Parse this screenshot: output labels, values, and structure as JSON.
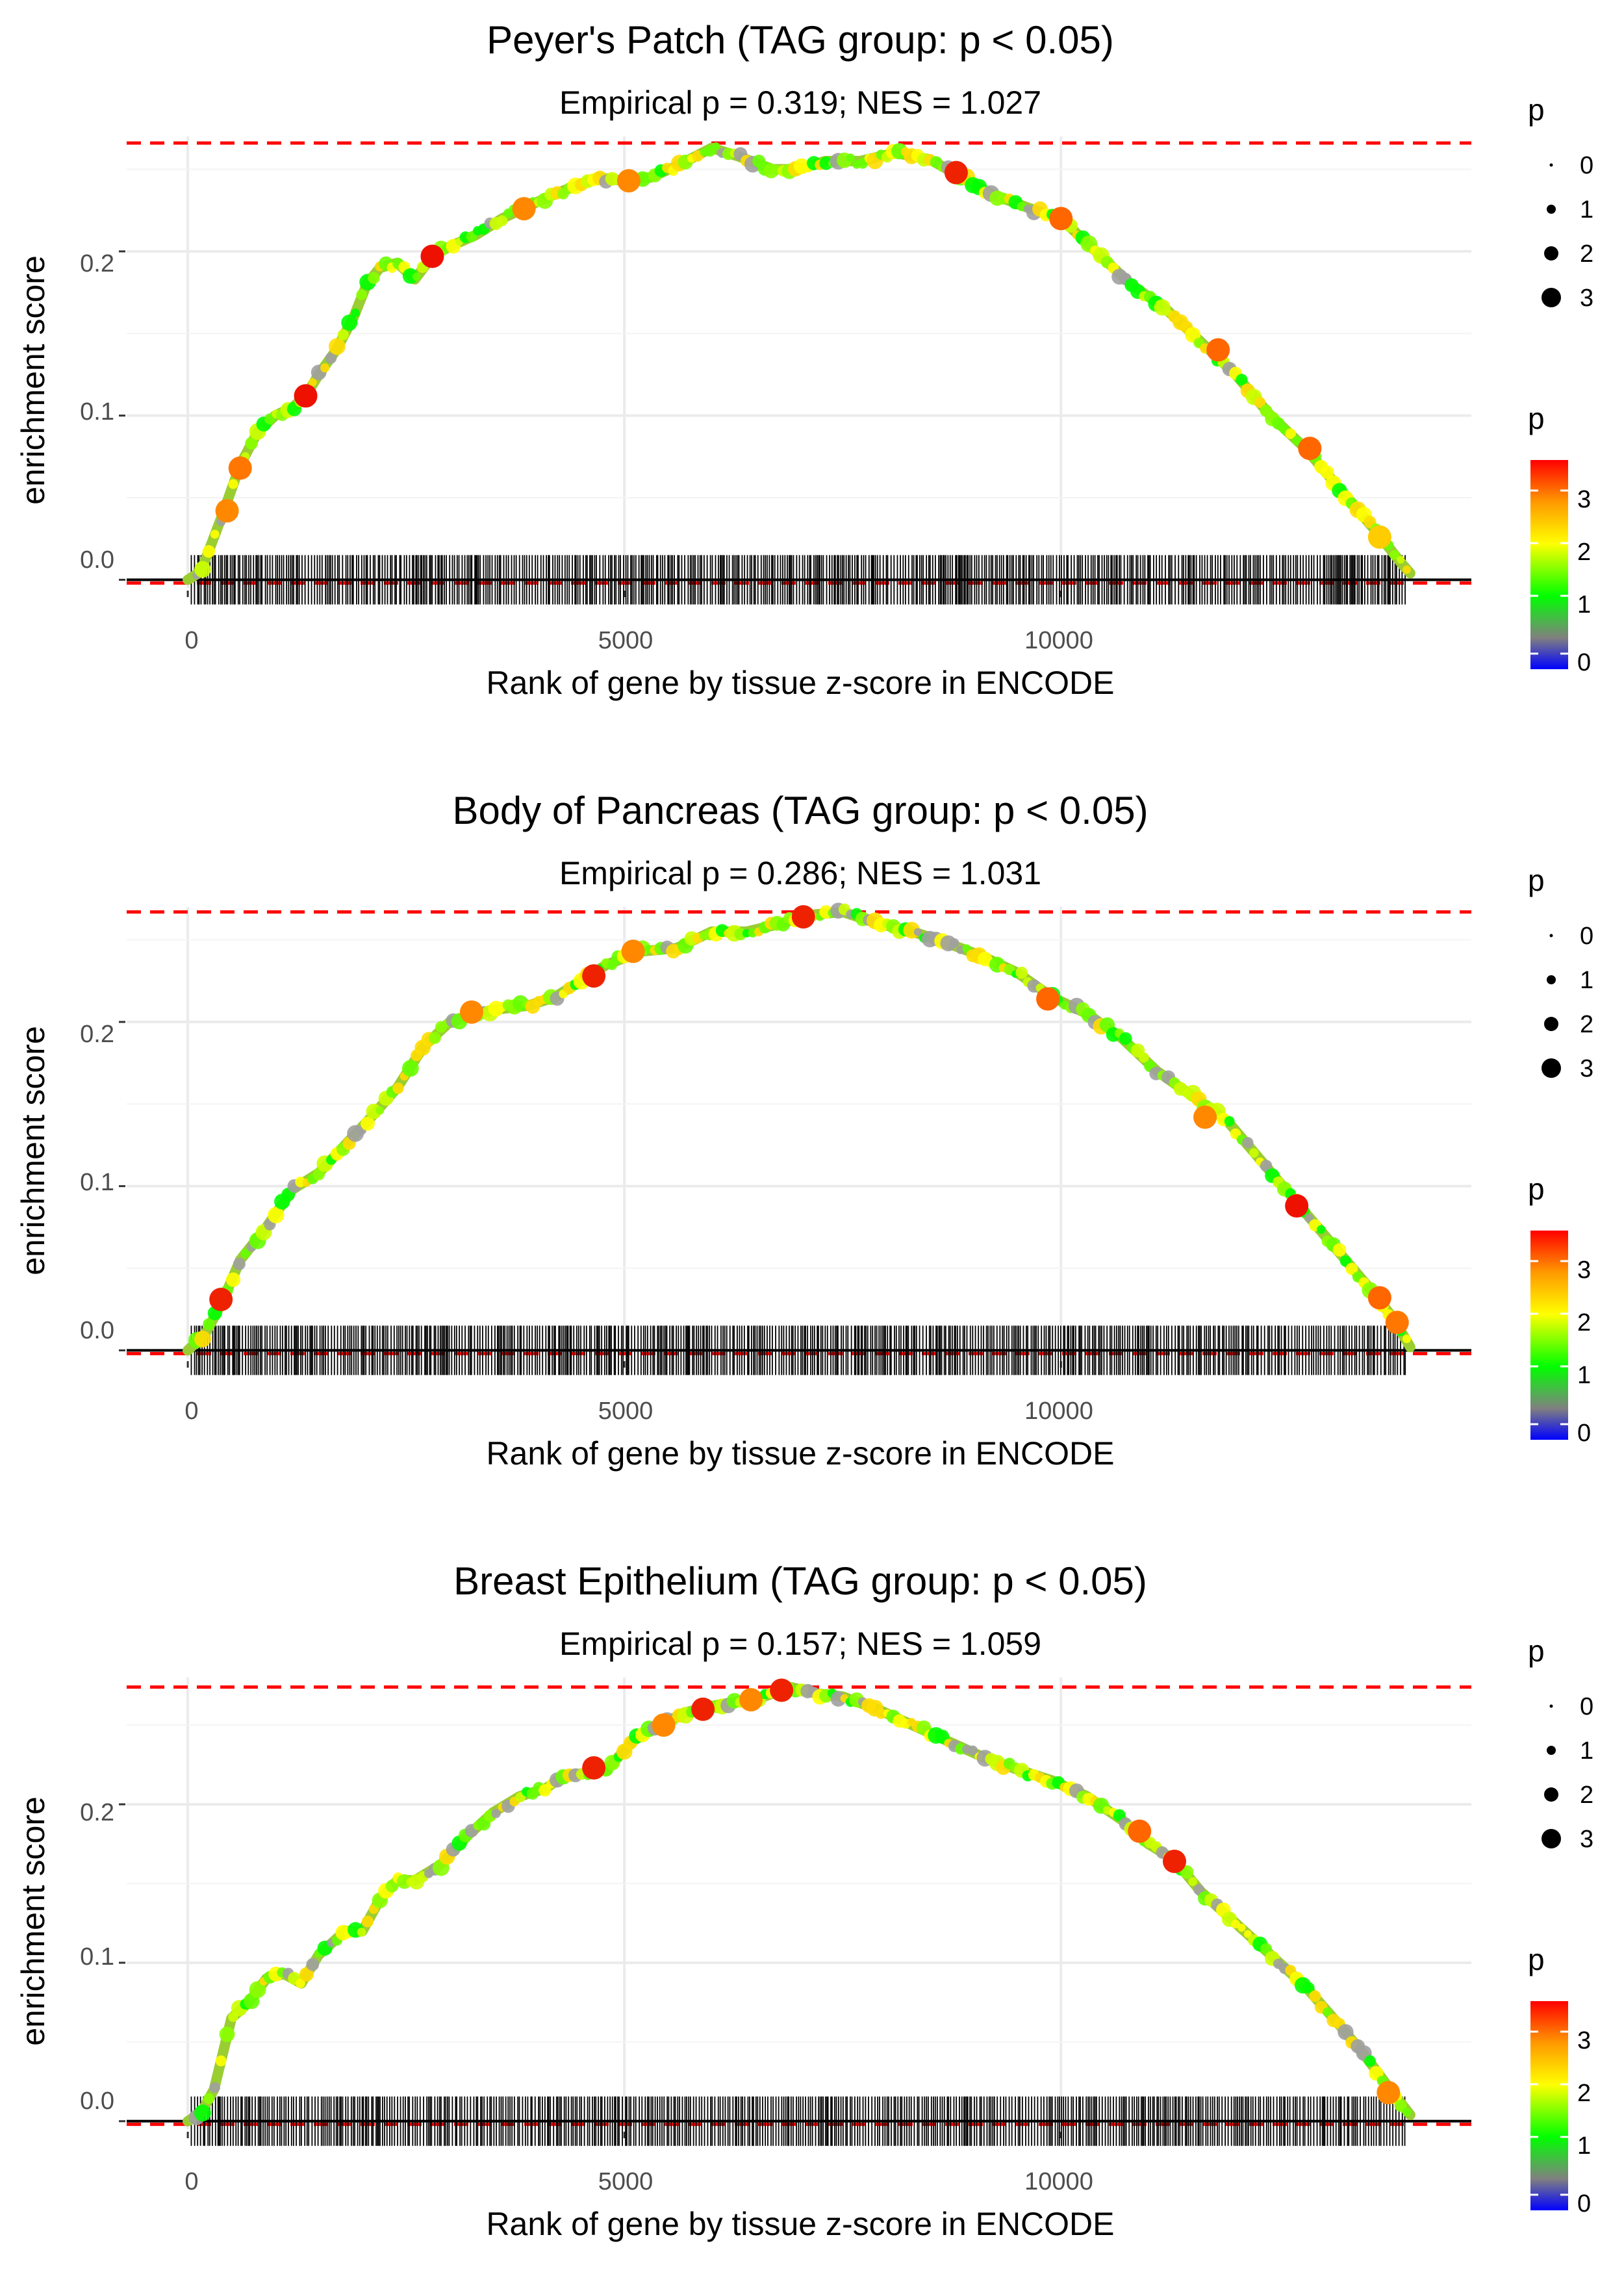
{
  "chart_data": [
    {
      "type": "line",
      "title": "Peyer's Patch (TAG group: p < 0.05)",
      "subtitle": "Empirical p = 0.319; NES = 1.027",
      "xlabel": "Rank of gene by tissue z-score in ENCODE",
      "ylabel": "enrichment score",
      "xlim": [
        -700,
        14700
      ],
      "ylim": [
        -0.005,
        0.27
      ],
      "x_ticks": [
        0,
        5000,
        10000
      ],
      "x_tick_labels": [
        "0",
        "5000",
        "10000"
      ],
      "y_ticks": [
        0.0,
        0.1,
        0.2
      ],
      "y_tick_labels": [
        "0.0",
        "0.1",
        "0.2"
      ],
      "max_es": 0.266,
      "min_es": -0.002,
      "curve": [
        [
          0,
          0
        ],
        [
          150,
          0.005
        ],
        [
          400,
          0.04
        ],
        [
          600,
          0.07
        ],
        [
          800,
          0.09
        ],
        [
          1000,
          0.1
        ],
        [
          1200,
          0.105
        ],
        [
          1350,
          0.112
        ],
        [
          1500,
          0.125
        ],
        [
          1700,
          0.14
        ],
        [
          1900,
          0.16
        ],
        [
          2050,
          0.18
        ],
        [
          2200,
          0.19
        ],
        [
          2400,
          0.193
        ],
        [
          2600,
          0.183
        ],
        [
          2800,
          0.197
        ],
        [
          3000,
          0.203
        ],
        [
          3300,
          0.21
        ],
        [
          3600,
          0.22
        ],
        [
          4000,
          0.23
        ],
        [
          4300,
          0.237
        ],
        [
          4700,
          0.245
        ],
        [
          5000,
          0.243
        ],
        [
          5300,
          0.245
        ],
        [
          5600,
          0.252
        ],
        [
          6000,
          0.263
        ],
        [
          6300,
          0.258
        ],
        [
          6700,
          0.25
        ],
        [
          7000,
          0.25
        ],
        [
          7300,
          0.255
        ],
        [
          7700,
          0.255
        ],
        [
          8100,
          0.26
        ],
        [
          8500,
          0.256
        ],
        [
          8800,
          0.247
        ],
        [
          9200,
          0.235
        ],
        [
          9600,
          0.227
        ],
        [
          10000,
          0.22
        ],
        [
          10400,
          0.2
        ],
        [
          10800,
          0.18
        ],
        [
          11200,
          0.165
        ],
        [
          11600,
          0.145
        ],
        [
          12000,
          0.125
        ],
        [
          12400,
          0.1
        ],
        [
          12800,
          0.08
        ],
        [
          13200,
          0.055
        ],
        [
          13600,
          0.03
        ],
        [
          13900,
          0.01
        ],
        [
          14000,
          0.004
        ]
      ],
      "highlights": [
        [
          450,
          0.042,
          "#ff8800"
        ],
        [
          600,
          0.068,
          "#ff7700"
        ],
        [
          1350,
          0.112,
          "#ee1100"
        ],
        [
          2800,
          0.197,
          "#ee1100"
        ],
        [
          3850,
          0.226,
          "#ff8800"
        ],
        [
          5050,
          0.243,
          "#ff8800"
        ],
        [
          8800,
          0.248,
          "#ee2200"
        ],
        [
          10000,
          0.22,
          "#ff6600"
        ],
        [
          11800,
          0.14,
          "#ff6600"
        ],
        [
          12850,
          0.08,
          "#ff6600"
        ],
        [
          13650,
          0.026,
          "#ffcc00"
        ]
      ],
      "legend_size": {
        "title": "p",
        "labels": [
          "0",
          "1",
          "2",
          "3"
        ]
      },
      "legend_color": {
        "title": "p",
        "labels": [
          "3",
          "2",
          "1",
          "0"
        ]
      }
    },
    {
      "type": "line",
      "title": "Body of Pancreas (TAG group: p < 0.05)",
      "subtitle": "Empirical p = 0.286; NES = 1.031",
      "xlabel": "Rank of gene by tissue z-score in ENCODE",
      "ylabel": "enrichment score",
      "xlim": [
        -700,
        14700
      ],
      "ylim": [
        -0.005,
        0.27
      ],
      "x_ticks": [
        0,
        5000,
        10000
      ],
      "x_tick_labels": [
        "0",
        "5000",
        "10000"
      ],
      "y_ticks": [
        0.0,
        0.1,
        0.2
      ],
      "y_tick_labels": [
        "0.0",
        "0.1",
        "0.2"
      ],
      "max_es": 0.267,
      "min_es": -0.002,
      "curve": [
        [
          0,
          0
        ],
        [
          200,
          0.01
        ],
        [
          400,
          0.03
        ],
        [
          600,
          0.055
        ],
        [
          900,
          0.075
        ],
        [
          1200,
          0.098
        ],
        [
          1500,
          0.108
        ],
        [
          1800,
          0.125
        ],
        [
          2100,
          0.142
        ],
        [
          2400,
          0.16
        ],
        [
          2700,
          0.185
        ],
        [
          3000,
          0.2
        ],
        [
          3300,
          0.205
        ],
        [
          3600,
          0.208
        ],
        [
          3900,
          0.21
        ],
        [
          4200,
          0.215
        ],
        [
          4500,
          0.225
        ],
        [
          4800,
          0.235
        ],
        [
          5200,
          0.243
        ],
        [
          5600,
          0.245
        ],
        [
          6000,
          0.255
        ],
        [
          6400,
          0.255
        ],
        [
          6800,
          0.26
        ],
        [
          7100,
          0.265
        ],
        [
          7500,
          0.267
        ],
        [
          7900,
          0.26
        ],
        [
          8300,
          0.255
        ],
        [
          8700,
          0.248
        ],
        [
          9100,
          0.24
        ],
        [
          9500,
          0.23
        ],
        [
          9900,
          0.215
        ],
        [
          10300,
          0.205
        ],
        [
          10700,
          0.19
        ],
        [
          11100,
          0.17
        ],
        [
          11500,
          0.155
        ],
        [
          11900,
          0.14
        ],
        [
          12300,
          0.115
        ],
        [
          12700,
          0.09
        ],
        [
          13100,
          0.065
        ],
        [
          13500,
          0.04
        ],
        [
          13800,
          0.02
        ],
        [
          14000,
          0.002
        ]
      ],
      "highlights": [
        [
          380,
          0.031,
          "#ee2200"
        ],
        [
          3250,
          0.206,
          "#ff8800"
        ],
        [
          4650,
          0.228,
          "#ee2200"
        ],
        [
          5100,
          0.243,
          "#ff8800"
        ],
        [
          7050,
          0.264,
          "#ee2200"
        ],
        [
          9850,
          0.214,
          "#ff6600"
        ],
        [
          11650,
          0.142,
          "#ff8800"
        ],
        [
          12700,
          0.088,
          "#ee1100"
        ],
        [
          13650,
          0.032,
          "#ff6600"
        ],
        [
          13850,
          0.017,
          "#ff7700"
        ]
      ],
      "legend_size": {
        "title": "p",
        "labels": [
          "0",
          "1",
          "2",
          "3"
        ]
      },
      "legend_color": {
        "title": "p",
        "labels": [
          "3",
          "2",
          "1",
          "0"
        ]
      }
    },
    {
      "type": "line",
      "title": "Breast Epithelium (TAG group: p < 0.05)",
      "subtitle": "Empirical p = 0.157; NES = 1.059",
      "xlabel": "Rank of gene by tissue z-score in ENCODE",
      "ylabel": "enrichment score",
      "xlim": [
        -700,
        14700
      ],
      "ylim": [
        -0.005,
        0.28
      ],
      "x_ticks": [
        0,
        5000,
        10000
      ],
      "x_tick_labels": [
        "0",
        "5000",
        "10000"
      ],
      "y_ticks": [
        0.0,
        0.1,
        0.2
      ],
      "y_tick_labels": [
        "0.0",
        "0.1",
        "0.2"
      ],
      "max_es": 0.274,
      "min_es": -0.002,
      "curve": [
        [
          0,
          0
        ],
        [
          150,
          0.005
        ],
        [
          300,
          0.02
        ],
        [
          500,
          0.065
        ],
        [
          700,
          0.075
        ],
        [
          900,
          0.09
        ],
        [
          1100,
          0.093
        ],
        [
          1300,
          0.087
        ],
        [
          1500,
          0.105
        ],
        [
          1800,
          0.12
        ],
        [
          2000,
          0.12
        ],
        [
          2200,
          0.14
        ],
        [
          2400,
          0.152
        ],
        [
          2600,
          0.152
        ],
        [
          2900,
          0.162
        ],
        [
          3200,
          0.18
        ],
        [
          3500,
          0.195
        ],
        [
          3800,
          0.205
        ],
        [
          4100,
          0.21
        ],
        [
          4300,
          0.218
        ],
        [
          4600,
          0.22
        ],
        [
          4800,
          0.222
        ],
        [
          5100,
          0.24
        ],
        [
          5400,
          0.25
        ],
        [
          5700,
          0.258
        ],
        [
          6000,
          0.262
        ],
        [
          6300,
          0.265
        ],
        [
          6600,
          0.268
        ],
        [
          6900,
          0.274
        ],
        [
          7200,
          0.27
        ],
        [
          7500,
          0.268
        ],
        [
          7900,
          0.26
        ],
        [
          8300,
          0.25
        ],
        [
          8700,
          0.24
        ],
        [
          9100,
          0.23
        ],
        [
          9500,
          0.222
        ],
        [
          9900,
          0.215
        ],
        [
          10300,
          0.205
        ],
        [
          10700,
          0.19
        ],
        [
          11000,
          0.175
        ],
        [
          11300,
          0.165
        ],
        [
          11600,
          0.145
        ],
        [
          12000,
          0.125
        ],
        [
          12400,
          0.105
        ],
        [
          12800,
          0.085
        ],
        [
          13200,
          0.06
        ],
        [
          13500,
          0.04
        ],
        [
          13800,
          0.018
        ],
        [
          14000,
          0.004
        ]
      ],
      "highlights": [
        [
          4650,
          0.223,
          "#ee2200"
        ],
        [
          5450,
          0.25,
          "#ff8800"
        ],
        [
          5900,
          0.26,
          "#ee2200"
        ],
        [
          6450,
          0.266,
          "#ff8800"
        ],
        [
          6800,
          0.272,
          "#ee2200"
        ],
        [
          10900,
          0.183,
          "#ff6600"
        ],
        [
          11300,
          0.164,
          "#ee2200"
        ],
        [
          13750,
          0.018,
          "#ff8800"
        ]
      ],
      "legend_size": {
        "title": "p",
        "labels": [
          "0",
          "1",
          "2",
          "3"
        ]
      },
      "legend_color": {
        "title": "p",
        "labels": [
          "3",
          "2",
          "1",
          "0"
        ]
      }
    }
  ],
  "colors": {
    "dashed_line": "#ff0000",
    "zero_line": "#000000",
    "grid": "#ebebeb",
    "gradient": [
      "#ff0000",
      "#ff9900",
      "#ffff00",
      "#00ff00",
      "#808080",
      "#0000ff"
    ]
  }
}
